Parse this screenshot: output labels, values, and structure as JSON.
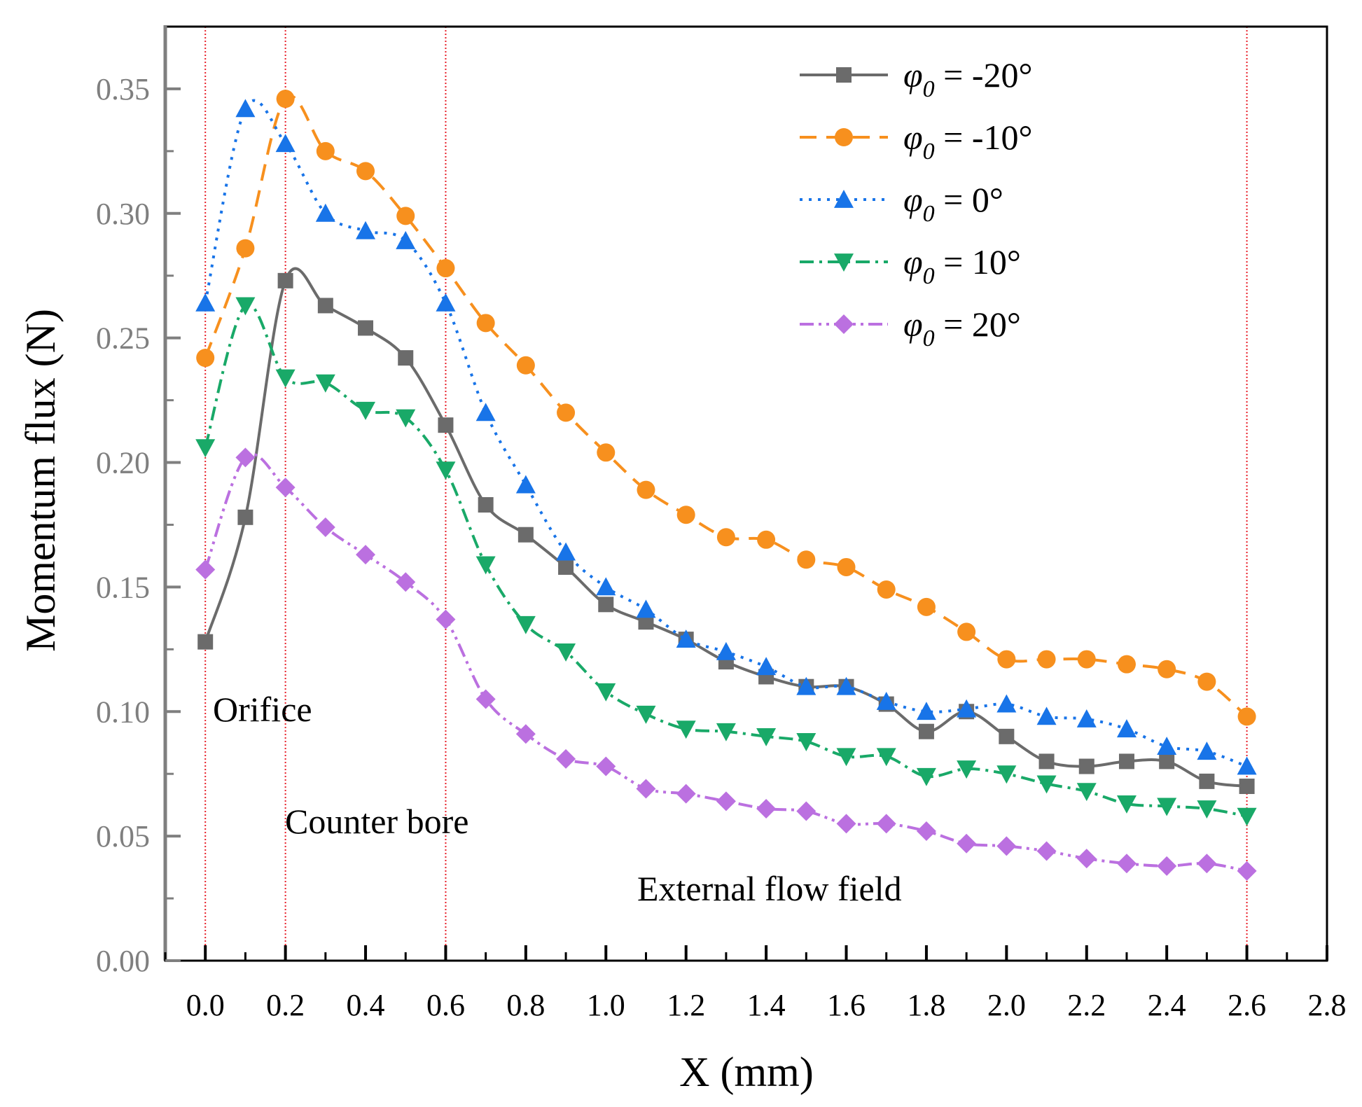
{
  "chart_data": {
    "type": "line",
    "title": "",
    "xlabel": "X (mm)",
    "ylabel": "Momentum flux (N)",
    "xlim": [
      -0.1,
      2.8
    ],
    "ylim": [
      0,
      0.375
    ],
    "x_ticks": [
      "0.0",
      "0.2",
      "0.4",
      "0.6",
      "0.8",
      "1.0",
      "1.2",
      "1.4",
      "1.6",
      "1.8",
      "2.0",
      "2.2",
      "2.4",
      "2.6",
      "2.8"
    ],
    "y_ticks": [
      "0.00",
      "0.05",
      "0.10",
      "0.15",
      "0.20",
      "0.25",
      "0.30",
      "0.35"
    ],
    "region_lines_x": [
      0,
      0.2,
      0.6,
      2.6
    ],
    "region_labels": {
      "orifice": "Orifice",
      "counter_bore": "Counter bore",
      "external": "External flow field"
    },
    "legend_position": "top-right",
    "x": [
      0,
      0.1,
      0.2,
      0.3,
      0.4,
      0.5,
      0.6,
      0.7,
      0.8,
      0.9,
      1.0,
      1.1,
      1.2,
      1.3,
      1.4,
      1.5,
      1.6,
      1.7,
      1.8,
      1.9,
      2.0,
      2.1,
      2.2,
      2.3,
      2.4,
      2.5,
      2.6
    ],
    "series": [
      {
        "name_symbol": "φ",
        "name_sub": "0",
        "name_rest": " = -20°",
        "color": "#6b6b6b",
        "marker": "square",
        "dash": "",
        "values": [
          0.128,
          0.178,
          0.273,
          0.263,
          0.254,
          0.242,
          0.215,
          0.183,
          0.171,
          0.158,
          0.143,
          0.136,
          0.129,
          0.12,
          0.114,
          0.11,
          0.11,
          0.103,
          0.092,
          0.1,
          0.09,
          0.08,
          0.078,
          0.08,
          0.08,
          0.072,
          0.07
        ]
      },
      {
        "name_symbol": "φ",
        "name_sub": "0",
        "name_rest": " = -10°",
        "color": "#f7901e",
        "marker": "circle",
        "dash": "24,14",
        "values": [
          0.242,
          0.286,
          0.346,
          0.325,
          0.317,
          0.299,
          0.278,
          0.256,
          0.239,
          0.22,
          0.204,
          0.189,
          0.179,
          0.17,
          0.169,
          0.161,
          0.158,
          0.149,
          0.142,
          0.132,
          0.121,
          0.121,
          0.121,
          0.119,
          0.117,
          0.112,
          0.098
        ]
      },
      {
        "name_symbol": "φ",
        "name_sub": "0",
        "name_rest": " = 0°",
        "color": "#1874e8",
        "marker": "triangle-up",
        "dash": "4,9",
        "values": [
          0.264,
          0.342,
          0.328,
          0.3,
          0.293,
          0.289,
          0.264,
          0.22,
          0.191,
          0.164,
          0.15,
          0.141,
          0.129,
          0.124,
          0.118,
          0.11,
          0.11,
          0.104,
          0.1,
          0.101,
          0.103,
          0.098,
          0.097,
          0.093,
          0.086,
          0.084,
          0.078
        ]
      },
      {
        "name_symbol": "φ",
        "name_sub": "0",
        "name_rest": " = 10°",
        "color": "#19a968",
        "marker": "triangle-down",
        "dash": "20,8,4,8",
        "values": [
          0.206,
          0.263,
          0.234,
          0.232,
          0.221,
          0.218,
          0.197,
          0.159,
          0.135,
          0.124,
          0.108,
          0.099,
          0.093,
          0.092,
          0.09,
          0.088,
          0.082,
          0.082,
          0.074,
          0.077,
          0.075,
          0.071,
          0.068,
          0.063,
          0.062,
          0.061,
          0.058
        ]
      },
      {
        "name_symbol": "φ",
        "name_sub": "0",
        "name_rest": " = 20°",
        "color": "#bb70e0",
        "marker": "diamond",
        "dash": "20,7,4,7,4,7",
        "values": [
          0.157,
          0.202,
          0.19,
          0.174,
          0.163,
          0.152,
          0.137,
          0.105,
          0.091,
          0.081,
          0.078,
          0.069,
          0.067,
          0.064,
          0.061,
          0.06,
          0.055,
          0.055,
          0.052,
          0.047,
          0.046,
          0.044,
          0.041,
          0.039,
          0.038,
          0.039,
          0.036
        ]
      }
    ]
  }
}
